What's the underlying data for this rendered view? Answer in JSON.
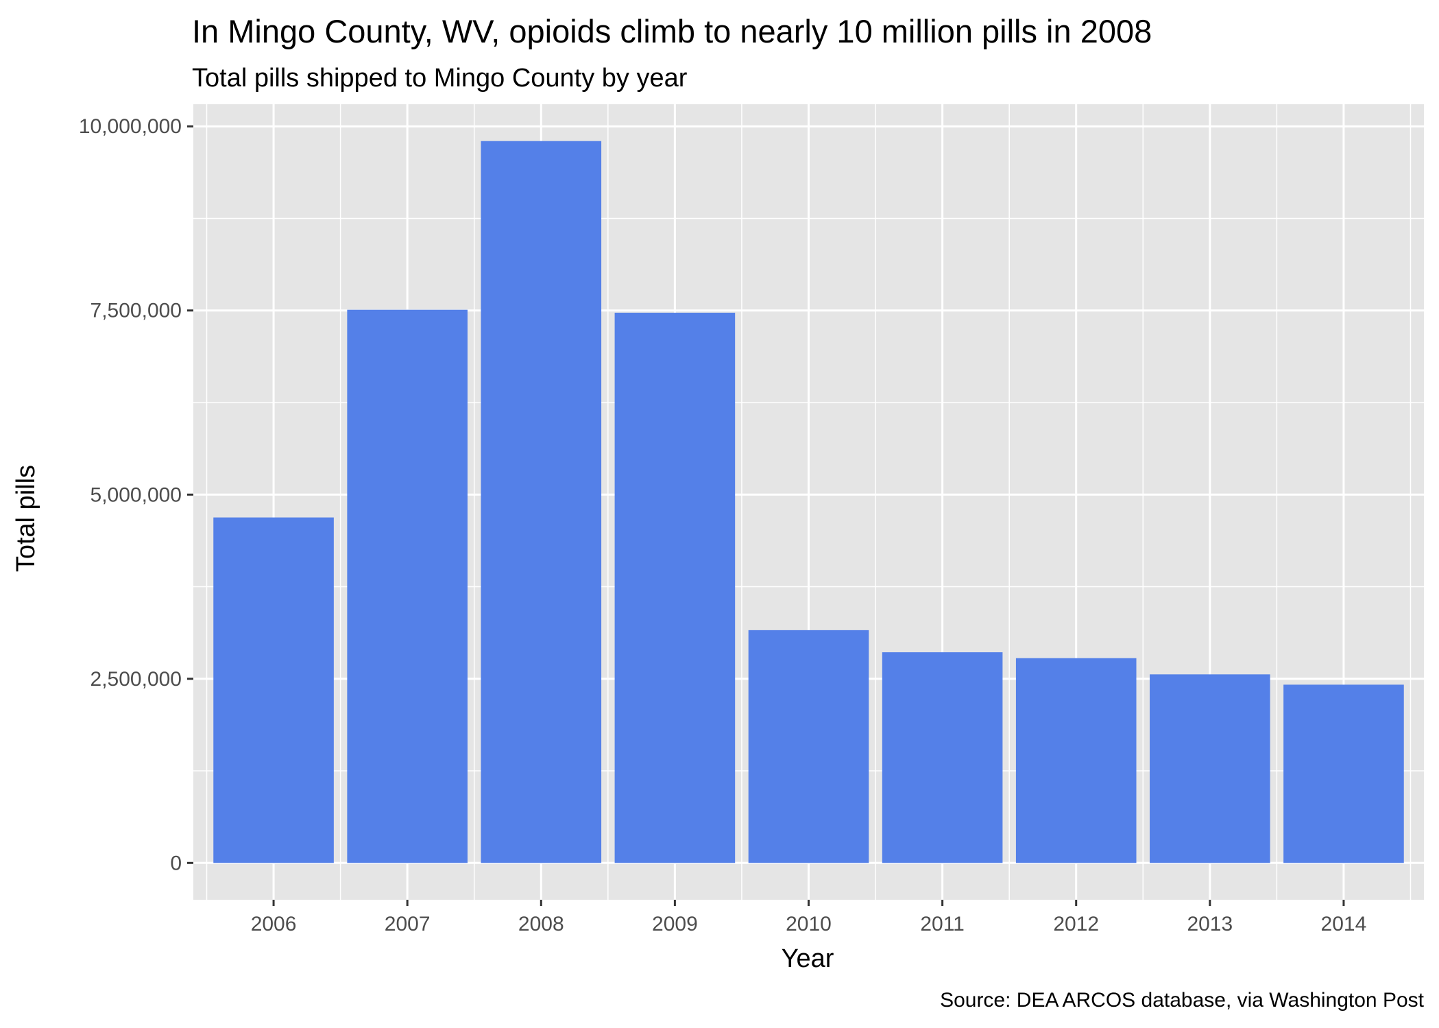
{
  "chart_data": {
    "type": "bar",
    "title": "In Mingo County, WV, opioids climb to nearly 10 million pills in 2008",
    "subtitle": "Total pills shipped to Mingo County by year",
    "xlabel": "Year",
    "ylabel": "Total pills",
    "caption": "Source: DEA ARCOS database, via Washington Post",
    "categories": [
      "2006",
      "2007",
      "2008",
      "2009",
      "2010",
      "2011",
      "2012",
      "2013",
      "2014"
    ],
    "values": [
      4690000,
      7510000,
      9800000,
      7470000,
      3160000,
      2860000,
      2780000,
      2560000,
      2420000
    ],
    "ylim": [
      -500000,
      10300000
    ],
    "yticks": [
      0,
      2500000,
      5000000,
      7500000,
      10000000
    ],
    "ytick_labels": [
      "0",
      "2,500,000",
      "5,000,000",
      "7,500,000",
      "10,000,000"
    ],
    "grid": true,
    "legend": "none",
    "colors": {
      "bar": "#5480e8",
      "panel": "#e5e5e5",
      "grid": "#ffffff",
      "tick_text": "#4d4d4d"
    }
  }
}
